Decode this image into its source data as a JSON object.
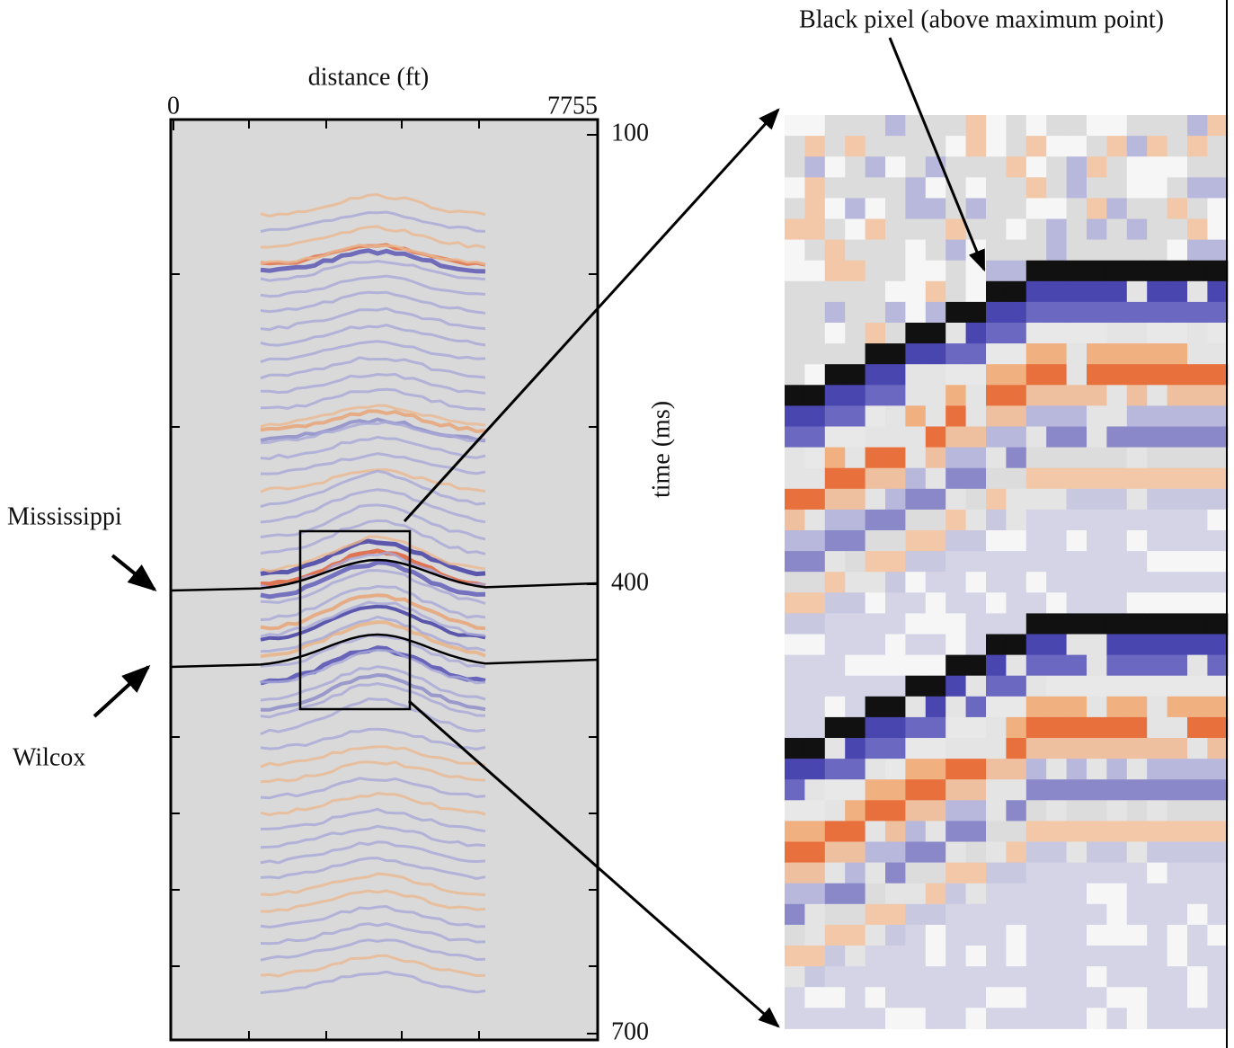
{
  "axes": {
    "xlabel": "distance (ft)",
    "xlim": [
      0,
      7755
    ],
    "ylabel": "time (ms)",
    "ylim": [
      100,
      700
    ],
    "yticks": [
      100,
      400,
      700
    ]
  },
  "annotations": {
    "mississippi": "Mississippi",
    "wilcox": "Wilcox",
    "black_pixel": "Black pixel (above maximum point)"
  }
}
